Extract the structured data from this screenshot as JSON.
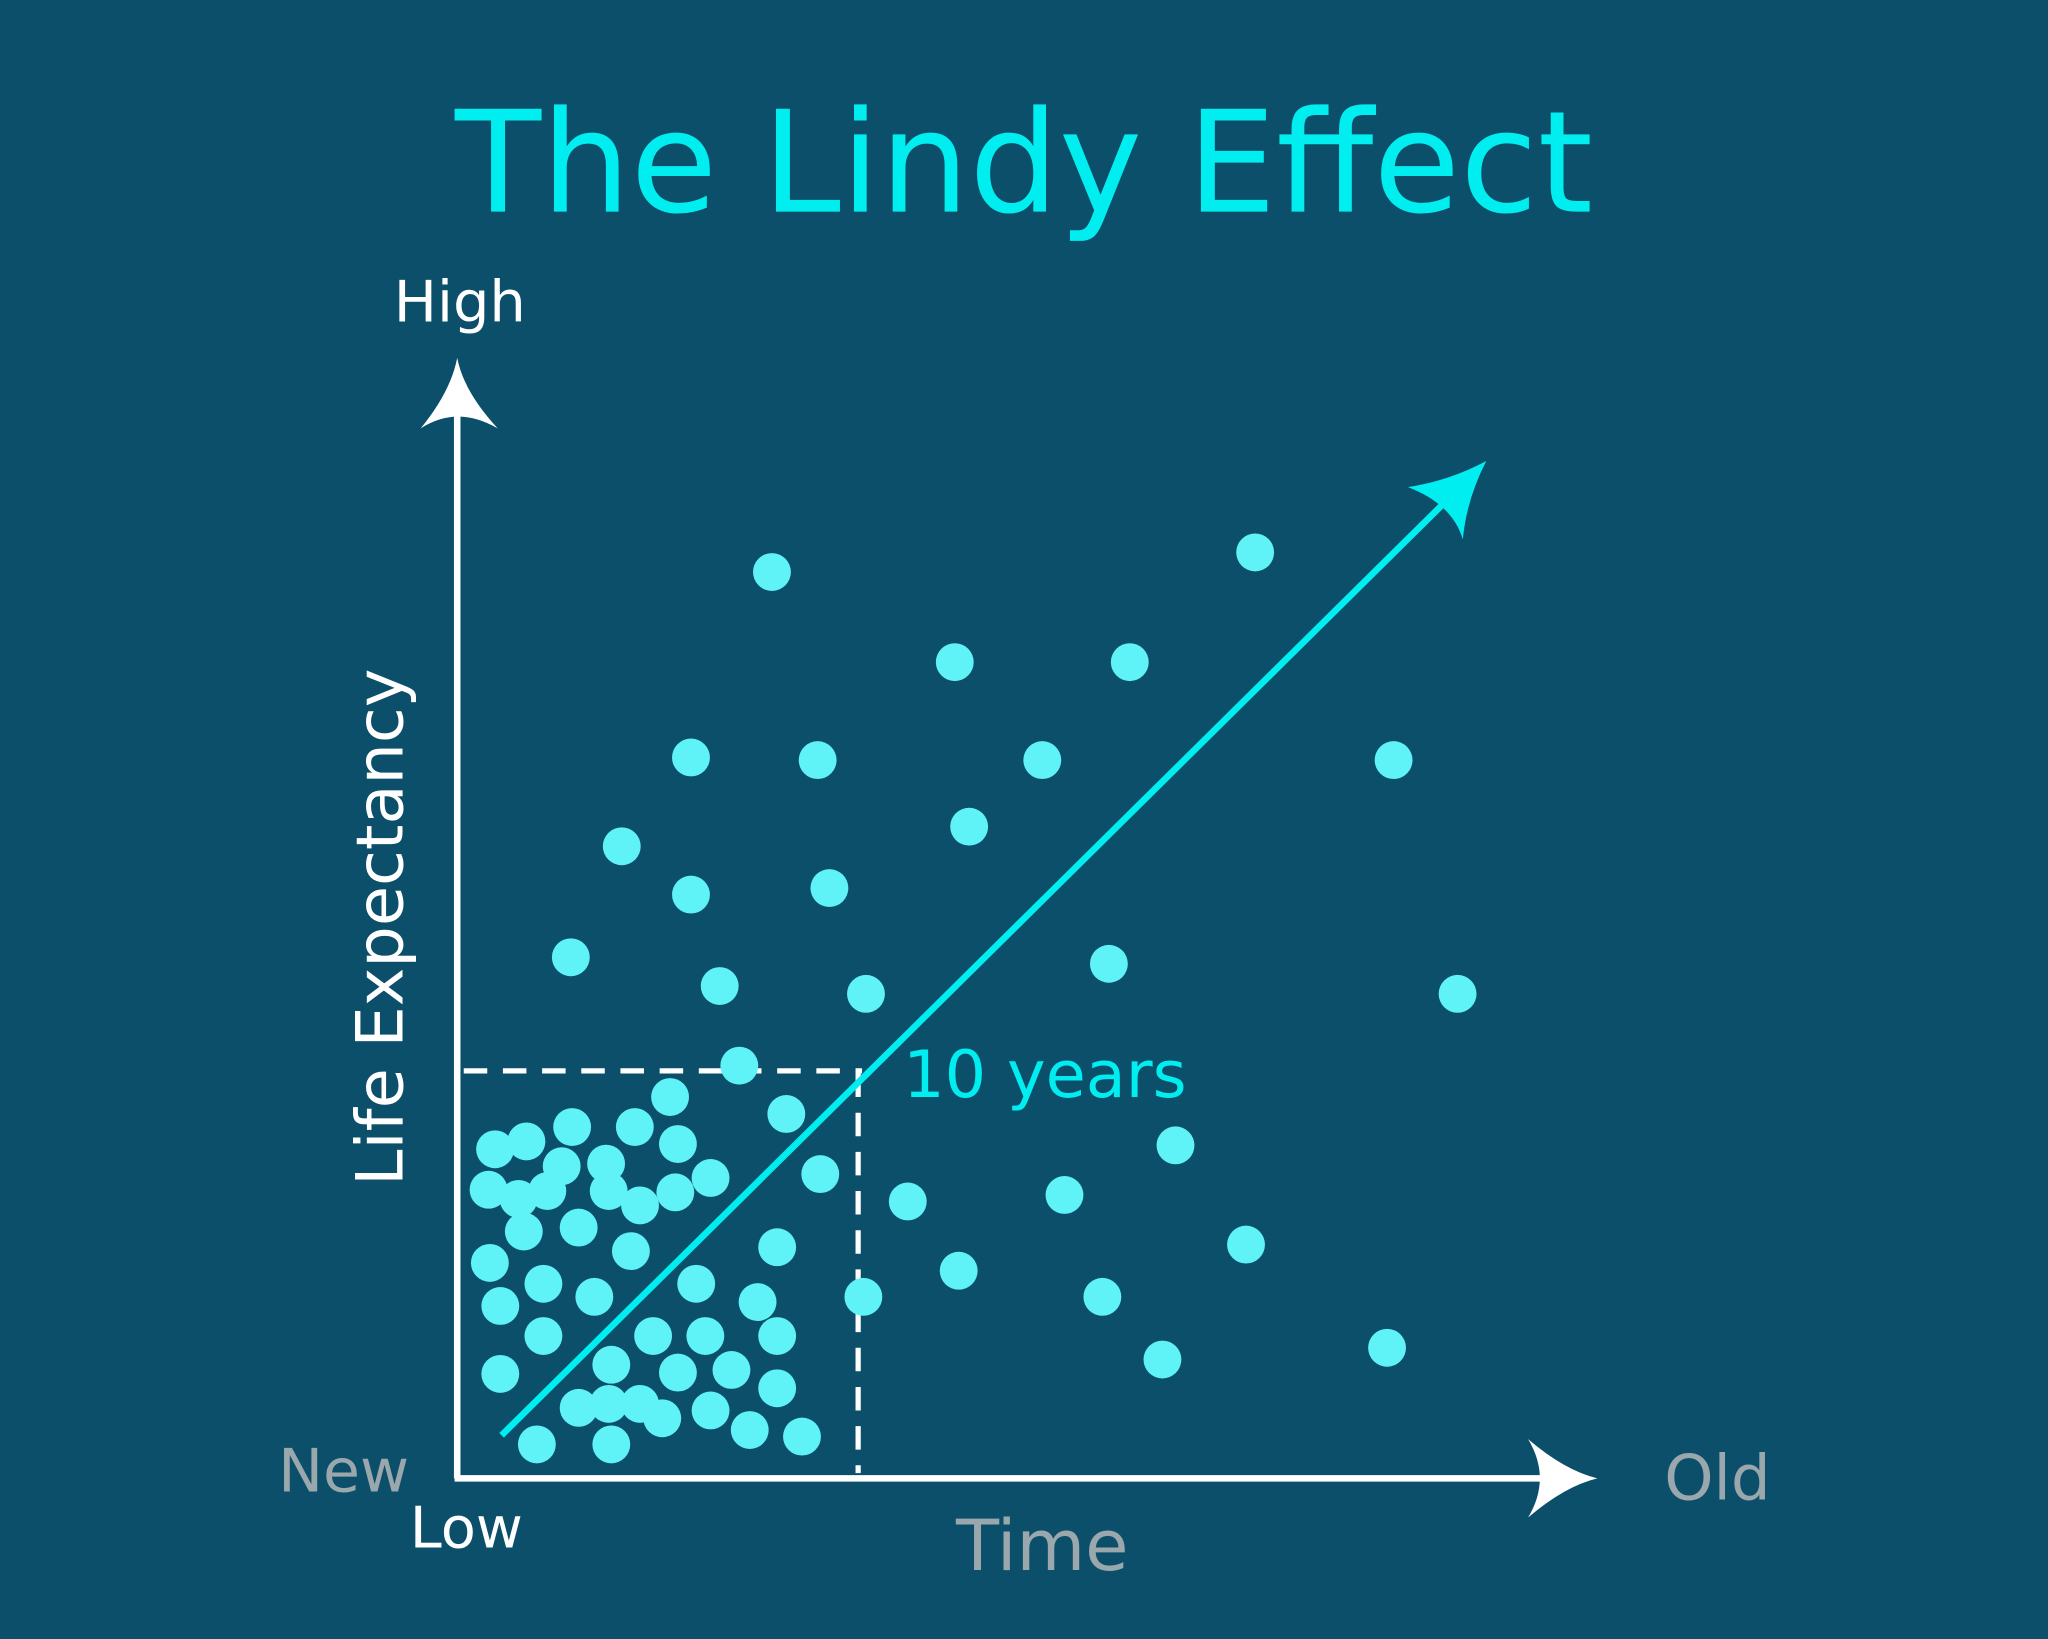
{
  "title": "The Lindy Effect",
  "y_axis": {
    "top_label": "High",
    "title": "Life Expectancy",
    "bottom_label": "Low"
  },
  "x_axis": {
    "left_label": "New",
    "title": "Time",
    "right_label": "Old"
  },
  "annotation": "10 years"
}
